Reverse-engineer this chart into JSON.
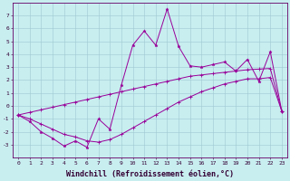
{
  "xlabel": "Windchill (Refroidissement éolien,°C)",
  "background_color": "#c8eef0",
  "grid_color": "#9ec8d0",
  "line_color": "#990099",
  "x_data": [
    0,
    1,
    2,
    3,
    4,
    5,
    6,
    7,
    8,
    9,
    10,
    11,
    12,
    13,
    14,
    15,
    16,
    17,
    18,
    19,
    20,
    21,
    22,
    23
  ],
  "line1": [
    -0.7,
    -1.2,
    -2.0,
    -2.5,
    -3.1,
    -2.7,
    -3.2,
    -1.0,
    -1.8,
    1.6,
    4.7,
    5.8,
    4.7,
    7.5,
    4.6,
    3.1,
    3.0,
    3.2,
    3.4,
    2.7,
    3.6,
    1.9,
    4.2,
    -0.4
  ],
  "line2": [
    -0.7,
    -0.5,
    -0.3,
    -0.1,
    0.1,
    0.3,
    0.5,
    0.7,
    0.9,
    1.1,
    1.3,
    1.5,
    1.7,
    1.9,
    2.1,
    2.3,
    2.4,
    2.5,
    2.6,
    2.7,
    2.8,
    2.85,
    2.9,
    -0.4
  ],
  "line3": [
    -0.7,
    -1.0,
    -1.4,
    -1.8,
    -2.2,
    -2.4,
    -2.7,
    -2.8,
    -2.6,
    -2.2,
    -1.7,
    -1.2,
    -0.7,
    -0.2,
    0.3,
    0.7,
    1.1,
    1.4,
    1.7,
    1.9,
    2.1,
    2.1,
    2.2,
    -0.4
  ],
  "ylim": [
    -4,
    8
  ],
  "xlim": [
    -0.5,
    23.5
  ],
  "yticks": [
    -3,
    -2,
    -1,
    0,
    1,
    2,
    3,
    4,
    5,
    6,
    7
  ],
  "xticks": [
    0,
    1,
    2,
    3,
    4,
    5,
    6,
    7,
    8,
    9,
    10,
    11,
    12,
    13,
    14,
    15,
    16,
    17,
    18,
    19,
    20,
    21,
    22,
    23
  ],
  "tick_fontsize": 4.5,
  "xlabel_fontsize": 6.0,
  "lw": 0.7
}
